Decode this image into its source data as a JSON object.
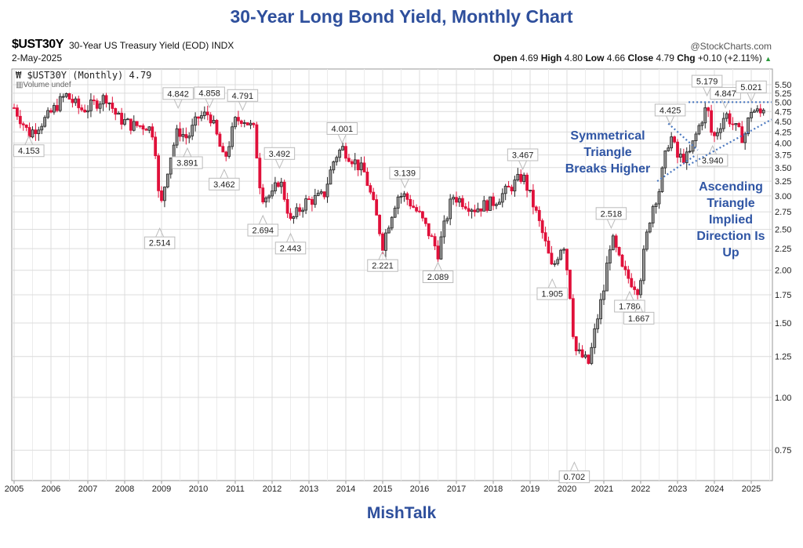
{
  "title": "30-Year Long Bond Yield, Monthly Chart",
  "header": {
    "symbol": "$UST30Y",
    "description": "30-Year US Treasury Yield (EOD) INDX",
    "brand": "@StockCharts.com",
    "date": "2-May-2025",
    "open_label": "Open",
    "open": "4.69",
    "high_label": "High",
    "high": "4.80",
    "low_label": "Low",
    "low": "4.66",
    "close_label": "Close",
    "close": "4.79",
    "chg_label": "Chg",
    "chg": "+0.10 (+2.11%)",
    "chg_arrow": "▲"
  },
  "legend": {
    "series": "$UST30Y (Monthly) 4.79",
    "volume": "Volume undef"
  },
  "footer": "MishTalk",
  "colors": {
    "title": "#2e4f9c",
    "up": "#222222",
    "down": "#e0103a",
    "annotation": "#2f55a4",
    "trend": "#4a78c0"
  },
  "chart_data": {
    "type": "candlestick",
    "title": "30-Year Long Bond Yield, Monthly Chart",
    "yscale": "log",
    "ylim": [
      0.65,
      5.6
    ],
    "yticks": [
      "5.50",
      "5.25",
      "5.00",
      "4.75",
      "4.50",
      "4.25",
      "4.00",
      "3.75",
      "3.50",
      "3.25",
      "3.00",
      "2.75",
      "2.50",
      "2.25",
      "2.00",
      "1.75",
      "1.50",
      "1.25",
      "1.00",
      "0.75"
    ],
    "xlim": [
      2004.95,
      2025.55
    ],
    "xticks": [
      "2005",
      "2006",
      "2007",
      "2008",
      "2009",
      "2010",
      "2011",
      "2012",
      "2013",
      "2014",
      "2015",
      "2016",
      "2017",
      "2018",
      "2019",
      "2020",
      "2021",
      "2022",
      "2023",
      "2024",
      "2025"
    ],
    "close_path": [
      [
        2005.0,
        4.85
      ],
      [
        2005.4,
        4.2
      ],
      [
        2005.9,
        4.6
      ],
      [
        2006.4,
        5.2
      ],
      [
        2006.8,
        4.8
      ],
      [
        2007.0,
        4.85
      ],
      [
        2007.5,
        5.15
      ],
      [
        2007.8,
        4.6
      ],
      [
        2008.2,
        4.4
      ],
      [
        2008.6,
        4.4
      ],
      [
        2008.8,
        4.2
      ],
      [
        2008.95,
        2.7
      ],
      [
        2009.2,
        3.6
      ],
      [
        2009.45,
        4.3
      ],
      [
        2009.7,
        4.1
      ],
      [
        2010.0,
        4.6
      ],
      [
        2010.3,
        4.7
      ],
      [
        2010.7,
        3.6
      ],
      [
        2011.0,
        4.5
      ],
      [
        2011.2,
        4.6
      ],
      [
        2011.5,
        4.3
      ],
      [
        2011.7,
        3.0
      ],
      [
        2012.0,
        3.0
      ],
      [
        2012.2,
        3.3
      ],
      [
        2012.5,
        2.6
      ],
      [
        2012.9,
        2.9
      ],
      [
        2013.4,
        3.0
      ],
      [
        2013.7,
        3.7
      ],
      [
        2013.9,
        3.9
      ],
      [
        2014.5,
        3.4
      ],
      [
        2015.0,
        2.3
      ],
      [
        2015.4,
        3.0
      ],
      [
        2015.6,
        3.0
      ],
      [
        2016.0,
        2.7
      ],
      [
        2016.5,
        2.2
      ],
      [
        2016.9,
        3.0
      ],
      [
        2017.5,
        2.8
      ],
      [
        2018.0,
        2.9
      ],
      [
        2018.4,
        3.1
      ],
      [
        2018.8,
        3.35
      ],
      [
        2019.0,
        3.0
      ],
      [
        2019.6,
        2.0
      ],
      [
        2019.9,
        2.35
      ],
      [
        2020.1,
        1.7
      ],
      [
        2020.2,
        1.3
      ],
      [
        2020.6,
        1.2
      ],
      [
        2021.0,
        1.8
      ],
      [
        2021.2,
        2.4
      ],
      [
        2021.5,
        2.0
      ],
      [
        2021.7,
        1.9
      ],
      [
        2021.95,
        1.8
      ],
      [
        2022.3,
        2.8
      ],
      [
        2022.5,
        3.1
      ],
      [
        2022.8,
        4.2
      ],
      [
        2023.0,
        3.7
      ],
      [
        2023.3,
        3.7
      ],
      [
        2023.8,
        4.9
      ],
      [
        2023.95,
        4.05
      ],
      [
        2024.3,
        4.7
      ],
      [
        2024.6,
        4.3
      ],
      [
        2024.8,
        4.1
      ],
      [
        2025.0,
        4.8
      ],
      [
        2025.3,
        4.68
      ],
      [
        2025.35,
        4.79
      ]
    ],
    "extremes": [
      {
        "label": "4.153",
        "year": 2005.4,
        "value": 4.153,
        "pos": "below"
      },
      {
        "label": "2.514",
        "year": 2008.95,
        "value": 2.514,
        "pos": "below"
      },
      {
        "label": "4.842",
        "year": 2009.45,
        "value": 4.842,
        "pos": "above"
      },
      {
        "label": "3.891",
        "year": 2009.7,
        "value": 3.891,
        "pos": "below"
      },
      {
        "label": "4.858",
        "year": 2010.3,
        "value": 4.858,
        "pos": "above"
      },
      {
        "label": "3.462",
        "year": 2010.7,
        "value": 3.462,
        "pos": "below"
      },
      {
        "label": "4.791",
        "year": 2011.2,
        "value": 4.791,
        "pos": "above"
      },
      {
        "label": "3.492",
        "year": 2012.2,
        "value": 3.492,
        "pos": "above"
      },
      {
        "label": "2.694",
        "year": 2011.75,
        "value": 2.694,
        "pos": "below"
      },
      {
        "label": "2.443",
        "year": 2012.5,
        "value": 2.443,
        "pos": "below"
      },
      {
        "label": "4.001",
        "year": 2013.9,
        "value": 4.001,
        "pos": "above"
      },
      {
        "label": "2.221",
        "year": 2015.0,
        "value": 2.221,
        "pos": "below"
      },
      {
        "label": "3.139",
        "year": 2015.6,
        "value": 3.139,
        "pos": "above"
      },
      {
        "label": "2.089",
        "year": 2016.5,
        "value": 2.089,
        "pos": "below"
      },
      {
        "label": "3.467",
        "year": 2018.8,
        "value": 3.467,
        "pos": "above"
      },
      {
        "label": "1.905",
        "year": 2019.6,
        "value": 1.905,
        "pos": "below"
      },
      {
        "label": "0.702",
        "year": 2020.2,
        "value": 0.702,
        "pos": "below"
      },
      {
        "label": "2.518",
        "year": 2021.2,
        "value": 2.518,
        "pos": "above"
      },
      {
        "label": "1.780",
        "year": 2021.7,
        "value": 1.78,
        "pos": "below"
      },
      {
        "label": "1.667",
        "year": 2021.95,
        "value": 1.667,
        "pos": "below"
      },
      {
        "label": "4.425",
        "year": 2022.8,
        "value": 4.425,
        "pos": "above"
      },
      {
        "label": "5.179",
        "year": 2023.8,
        "value": 5.179,
        "pos": "above"
      },
      {
        "label": "3.940",
        "year": 2023.95,
        "value": 3.94,
        "pos": "below"
      },
      {
        "label": "4.847",
        "year": 2024.3,
        "value": 4.847,
        "pos": "above"
      },
      {
        "label": "5.021",
        "year": 2025.0,
        "value": 5.021,
        "pos": "above"
      }
    ],
    "trendlines": [
      {
        "name": "resistance",
        "from": [
          2023.3,
          5.0
        ],
        "to": [
          2025.55,
          5.0
        ]
      },
      {
        "name": "sym-upper",
        "from": [
          2022.75,
          4.45
        ],
        "to": [
          2023.55,
          3.85
        ]
      },
      {
        "name": "sym-lower",
        "from": [
          2022.45,
          3.25
        ],
        "to": [
          2023.5,
          3.75
        ]
      },
      {
        "name": "asc-lower",
        "from": [
          2023.3,
          3.55
        ],
        "to": [
          2025.55,
          4.55
        ]
      }
    ],
    "annotations": [
      {
        "lines": [
          "Symmetrical",
          "Triangle",
          "Breaks Higher"
        ]
      },
      {
        "lines": [
          "Ascending",
          "Triangle",
          "Implied",
          "Direction Is",
          "Up"
        ]
      }
    ]
  }
}
